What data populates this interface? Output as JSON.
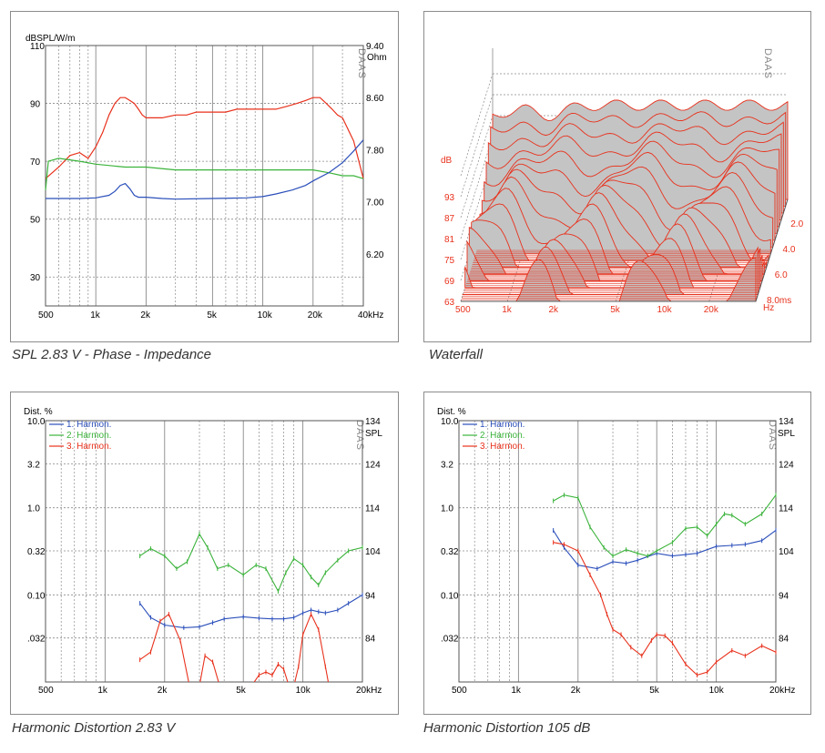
{
  "colors": {
    "red": "#e8311c",
    "green": "#3bb33b",
    "blue": "#2b4fba",
    "grid": "#8a8a8a",
    "grey_fill": "#c4c4c4"
  },
  "spl": {
    "caption": "SPL 2.83 V - Phase - Impedance",
    "left_unit": "dBSPL/W/m",
    "right_unit": "Ohm",
    "brand": "DAAS",
    "x_ticks": [
      "500",
      "1k",
      "2k",
      "5k",
      "10k",
      "20k",
      "40kHz"
    ],
    "y_left_ticks": [
      "110",
      "90",
      "70",
      "50",
      "30"
    ],
    "y_right_ticks": [
      "9.40",
      "8.60",
      "7.80",
      "7.00",
      "6.20"
    ]
  },
  "waterfall": {
    "caption": "Waterfall",
    "y_unit": "dB",
    "brand": "DAAS",
    "x_ticks": [
      "500",
      "1k",
      "2k",
      "5k",
      "10k",
      "20k",
      "Hz"
    ],
    "y_ticks": [
      "93",
      "87",
      "81",
      "75",
      "69",
      "63"
    ],
    "t_ticks": [
      "2.0",
      "4.0",
      "6.0",
      "8.0ms"
    ]
  },
  "hd1": {
    "caption": "Harmonic Distortion 2.83 V",
    "left_unit": "Dist. %",
    "right_unit": "SPL",
    "brand": "DAAS",
    "legend": [
      "1. Harmon.",
      "2. Harmon.",
      "3. Harmon."
    ],
    "x_ticks": [
      "500",
      "1k",
      "2k",
      "5k",
      "10k",
      "20kHz"
    ],
    "y_left_ticks": [
      "10.0",
      "3.2",
      "1.0",
      "0.32",
      "0.10",
      ".032"
    ],
    "y_right_ticks": [
      "134",
      "124",
      "114",
      "104",
      "94",
      "84"
    ]
  },
  "hd2": {
    "caption": "Harmonic Distortion 105 dB",
    "left_unit": "Dist. %",
    "right_unit": "SPL",
    "brand": "DAAS",
    "legend": [
      "1. Harmon.",
      "2. Harmon.",
      "3. Harmon."
    ],
    "x_ticks": [
      "500",
      "1k",
      "2k",
      "5k",
      "10k",
      "20kHz"
    ],
    "y_left_ticks": [
      "10.0",
      "3.2",
      "1.0",
      "0.32",
      "0.10",
      ".032"
    ],
    "y_right_ticks": [
      "134",
      "124",
      "114",
      "104",
      "94",
      "84"
    ]
  },
  "chart_data": [
    {
      "type": "line",
      "title": "SPL 2.83 V - Phase - Impedance",
      "x_scale": "log",
      "xlim": [
        500,
        40000
      ],
      "ylim": [
        20,
        110
      ],
      "ylabel": "dBSPL/W/m",
      "y2lim": [
        5.4,
        9.4
      ],
      "y2label": "Ohm",
      "series": [
        {
          "color": "#e8311c",
          "axis": "left",
          "x": [
            500,
            600,
            700,
            800,
            900,
            1000,
            1100,
            1200,
            1300,
            1400,
            1500,
            1600,
            1700,
            1800,
            1900,
            2000,
            2200,
            2500,
            3000,
            3500,
            4000,
            5000,
            6000,
            7000,
            8000,
            10000,
            12000,
            14000,
            16000,
            18000,
            20000,
            22000,
            24000,
            26000,
            28000,
            30000,
            35000,
            40000
          ],
          "y": [
            64,
            68,
            72,
            73,
            71,
            75,
            80,
            86,
            90,
            92,
            92,
            91,
            90,
            88,
            86,
            85,
            85,
            85,
            86,
            86,
            87,
            87,
            87,
            88,
            88,
            88,
            88,
            89,
            90,
            91,
            92,
            92,
            90,
            88,
            86,
            85,
            77,
            64
          ]
        },
        {
          "color": "#3bb33b",
          "axis": "left",
          "x": [
            500,
            520,
            600,
            800,
            1000,
            1500,
            2000,
            3000,
            5000,
            10000,
            20000,
            25000,
            30000,
            35000,
            40000
          ],
          "y": [
            60,
            70,
            71,
            70,
            69,
            68,
            68,
            67,
            67,
            67,
            67,
            66,
            65,
            65,
            64
          ]
        },
        {
          "color": "#2b4fba",
          "axis": "right",
          "x": [
            500,
            800,
            1000,
            1200,
            1300,
            1400,
            1500,
            1600,
            1700,
            1800,
            2000,
            2500,
            3000,
            5000,
            8000,
            10000,
            12000,
            15000,
            18000,
            20000,
            25000,
            30000,
            35000,
            40000
          ],
          "y": [
            7.05,
            7.05,
            7.06,
            7.1,
            7.16,
            7.25,
            7.28,
            7.2,
            7.1,
            7.07,
            7.07,
            7.05,
            7.04,
            7.05,
            7.06,
            7.08,
            7.12,
            7.18,
            7.25,
            7.32,
            7.45,
            7.6,
            7.78,
            7.95
          ]
        }
      ]
    },
    {
      "type": "area",
      "title": "Waterfall",
      "x_scale": "log",
      "xlim": [
        500,
        40000
      ],
      "ylim": [
        63,
        99
      ],
      "ylabel": "dB",
      "zlim": [
        0,
        8
      ],
      "zlabel": "ms"
    },
    {
      "type": "line",
      "title": "Harmonic Distortion 2.83 V",
      "x_scale": "log",
      "xlim": [
        500,
        20000
      ],
      "y_scale": "log",
      "ylim": [
        0.01,
        10
      ],
      "ylabel": "Dist. %",
      "y2lim": [
        74,
        134
      ],
      "y2label": "SPL",
      "series": [
        {
          "name": "1. Harmon.",
          "color": "#2b4fba",
          "x": [
            1500,
            1700,
            2000,
            2500,
            3000,
            3500,
            4000,
            5000,
            6000,
            7000,
            8000,
            9000,
            10000,
            11000,
            12000,
            13000,
            15000,
            17000,
            20000
          ],
          "y": [
            0.08,
            0.055,
            0.045,
            0.042,
            0.043,
            0.048,
            0.053,
            0.056,
            0.054,
            0.053,
            0.053,
            0.055,
            0.062,
            0.067,
            0.064,
            0.062,
            0.067,
            0.08,
            0.1
          ]
        },
        {
          "name": "2. Harmon.",
          "color": "#3bb33b",
          "x": [
            1500,
            1700,
            2000,
            2300,
            2600,
            3000,
            3300,
            3700,
            4200,
            5000,
            5800,
            6500,
            7500,
            8200,
            9000,
            10000,
            11000,
            12000,
            13000,
            15000,
            17000,
            20000
          ],
          "y": [
            0.28,
            0.34,
            0.28,
            0.2,
            0.24,
            0.5,
            0.35,
            0.2,
            0.22,
            0.17,
            0.22,
            0.2,
            0.11,
            0.18,
            0.26,
            0.22,
            0.16,
            0.13,
            0.18,
            0.25,
            0.32,
            0.35
          ]
        },
        {
          "name": "3. Harmon.",
          "color": "#e8311c",
          "x": [
            1500,
            1700,
            1900,
            2100,
            2400,
            2700,
            3000,
            3200,
            3500,
            3800,
            4200,
            4600,
            5000,
            5500,
            6000,
            6500,
            7000,
            7500,
            8000,
            8500,
            9000,
            9500,
            10000,
            11000,
            12000,
            13000,
            14000
          ],
          "y": [
            0.018,
            0.022,
            0.05,
            0.06,
            0.03,
            0.008,
            0.009,
            0.02,
            0.017,
            0.009,
            0.008,
            0.009,
            0.007,
            0.009,
            0.012,
            0.013,
            0.012,
            0.016,
            0.014,
            0.009,
            0.009,
            0.015,
            0.035,
            0.06,
            0.04,
            0.015,
            0.006
          ]
        }
      ]
    },
    {
      "type": "line",
      "title": "Harmonic Distortion 105 dB",
      "x_scale": "log",
      "xlim": [
        500,
        20000
      ],
      "y_scale": "log",
      "ylim": [
        0.01,
        10
      ],
      "ylabel": "Dist. %",
      "y2lim": [
        74,
        134
      ],
      "y2label": "SPL",
      "series": [
        {
          "name": "1. Harmon.",
          "color": "#2b4fba",
          "x": [
            1500,
            1700,
            2000,
            2500,
            3000,
            3500,
            4000,
            5000,
            6000,
            7000,
            8000,
            10000,
            12000,
            14000,
            17000,
            20000
          ],
          "y": [
            0.55,
            0.35,
            0.22,
            0.2,
            0.24,
            0.23,
            0.25,
            0.3,
            0.28,
            0.29,
            0.3,
            0.36,
            0.37,
            0.38,
            0.42,
            0.55
          ]
        },
        {
          "name": "2. Harmon.",
          "color": "#3bb33b",
          "x": [
            1500,
            1700,
            2000,
            2300,
            2700,
            3000,
            3500,
            4000,
            4500,
            5000,
            6000,
            7000,
            8000,
            9000,
            10000,
            11000,
            12000,
            14000,
            17000,
            20000
          ],
          "y": [
            1.2,
            1.4,
            1.3,
            0.6,
            0.35,
            0.28,
            0.33,
            0.3,
            0.28,
            0.32,
            0.4,
            0.58,
            0.6,
            0.48,
            0.65,
            0.85,
            0.82,
            0.65,
            0.85,
            1.4
          ]
        },
        {
          "name": "3. Harmon.",
          "color": "#e8311c",
          "x": [
            1500,
            1700,
            2000,
            2300,
            2600,
            2800,
            3000,
            3300,
            3700,
            4200,
            4700,
            5000,
            5500,
            6000,
            7000,
            8000,
            9000,
            10000,
            12000,
            14000,
            17000,
            20000
          ],
          "y": [
            0.4,
            0.38,
            0.32,
            0.17,
            0.1,
            0.06,
            0.04,
            0.035,
            0.025,
            0.02,
            0.03,
            0.035,
            0.034,
            0.028,
            0.016,
            0.012,
            0.013,
            0.017,
            0.023,
            0.02,
            0.026,
            0.022
          ]
        }
      ]
    }
  ]
}
